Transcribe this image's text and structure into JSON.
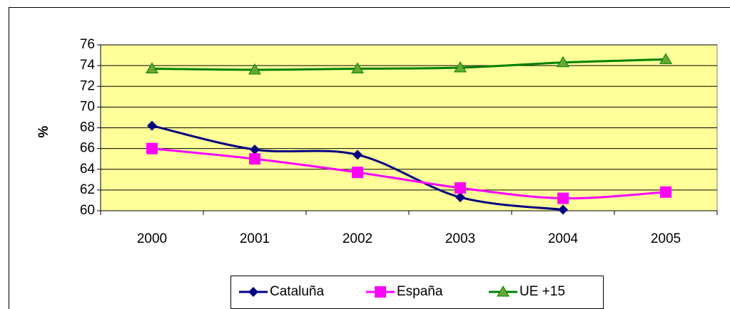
{
  "chart_data": {
    "type": "line",
    "ylabel": "%",
    "categories": [
      "2000",
      "2001",
      "2002",
      "2003",
      "2004",
      "2005"
    ],
    "series": [
      {
        "name": "Cataluña",
        "color": "#000080",
        "marker": "diamond",
        "values": [
          68.2,
          65.9,
          65.4,
          61.3,
          60.1,
          null
        ]
      },
      {
        "name": "España",
        "color": "#FF00FF",
        "marker": "square",
        "values": [
          66.0,
          65.0,
          63.7,
          62.2,
          61.2,
          61.8
        ]
      },
      {
        "name": "UE +15",
        "color": "#008000",
        "marker": "triangle",
        "values": [
          73.7,
          73.6,
          73.7,
          73.8,
          74.3,
          74.6
        ]
      }
    ],
    "ylim": [
      60,
      76
    ],
    "yticks": [
      60,
      62,
      64,
      66,
      68,
      70,
      72,
      74,
      76
    ],
    "grid": true,
    "legend": "bottom",
    "background": "#FFFF99",
    "smooth": true
  }
}
